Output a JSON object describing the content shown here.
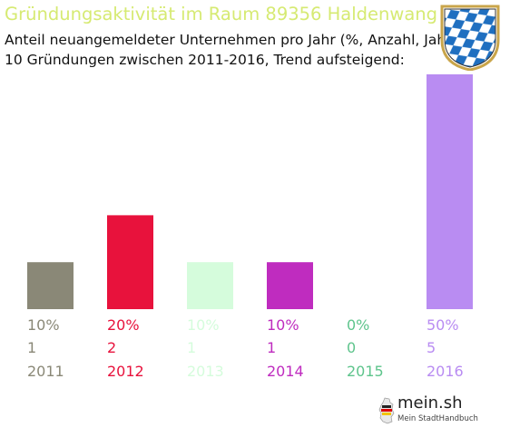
{
  "header": {
    "title": "Gründungsaktivität im Raum 89356 Haldenwang",
    "subtitle_line1": "Anteil neuangemeldeter Unternehmen pro Jahr (%, Anzahl, Jahr)",
    "subtitle_line2": "10 Gründungen zwischen 2011-2016, Trend aufsteigend:"
  },
  "crest": {
    "icon": "bavaria-coat-of-arms-icon",
    "colors": {
      "blue": "#1f6fc0",
      "white": "#ffffff",
      "gold": "#c9a54a"
    }
  },
  "logo": {
    "name": "mein.sh",
    "tagline": "Mein StadtHandbuch",
    "icon": "germany-map-icon"
  },
  "chart_data": {
    "type": "bar",
    "categories": [
      "2011",
      "2012",
      "2013",
      "2014",
      "2015",
      "2016"
    ],
    "percent_labels": [
      "10%",
      "20%",
      "10%",
      "10%",
      "0%",
      "50%"
    ],
    "count_labels": [
      "1",
      "2",
      "1",
      "1",
      "0",
      "5"
    ],
    "values": [
      10,
      20,
      10,
      10,
      0,
      50
    ],
    "counts": [
      1,
      2,
      1,
      1,
      0,
      5
    ],
    "colors": [
      "#8a8877",
      "#e8123c",
      "#d5fcdc",
      "#bf2cbf",
      "#5ec48c",
      "#b98cf2"
    ],
    "ylim": [
      0,
      50
    ],
    "grid": false,
    "legend": "none"
  }
}
